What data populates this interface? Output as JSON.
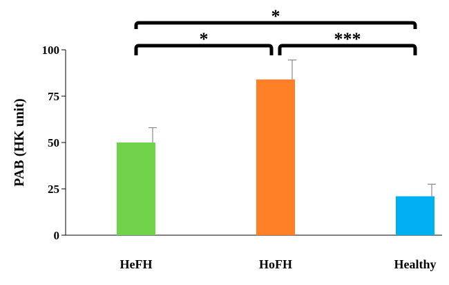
{
  "chart_data": {
    "type": "bar",
    "categories": [
      "HeFH",
      "HoFH",
      "Healthy"
    ],
    "values": [
      50,
      84,
      21
    ],
    "errors": [
      8,
      10.5,
      6.5
    ],
    "colors": [
      "#6fd24a",
      "#ff7f27",
      "#00b0f0"
    ],
    "ylabel": "PAB (HK unit)",
    "ylim": [
      0,
      100
    ],
    "yticks": [
      "0",
      "25",
      "50",
      "75",
      "100"
    ],
    "grid": false,
    "significance": [
      {
        "from": 0,
        "to": 1,
        "label": "*"
      },
      {
        "from": 1,
        "to": 2,
        "label": "***"
      },
      {
        "from": 0,
        "to": 2,
        "label": "*"
      }
    ]
  }
}
